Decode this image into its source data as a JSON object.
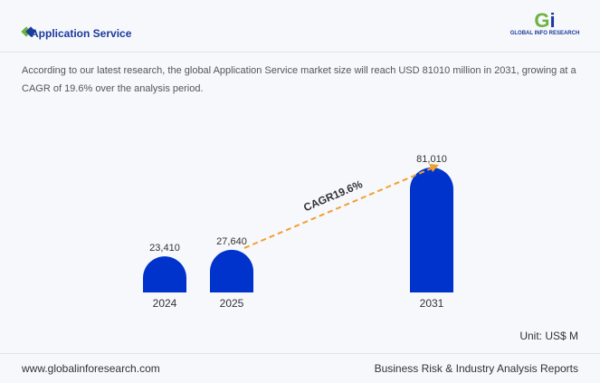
{
  "header": {
    "title": "Application Service",
    "logo_text": "GLOBAL INFO RESEARCH"
  },
  "description": "According to our latest research, the global Application Service market size will reach USD 81010 million in 2031, growing at a CAGR of 19.6% over the analysis period.",
  "colors": {
    "bar": "#0033cc",
    "arrow": "#f0a030",
    "title": "#1a3a9c"
  },
  "chart_data": {
    "type": "bar",
    "categories": [
      "2024",
      "2025",
      "2031"
    ],
    "values": [
      23410,
      27640,
      81010
    ],
    "data_labels": [
      "23,410",
      "27,640",
      "81,010"
    ],
    "annotation": "CAGR19.6%",
    "unit": "Unit: US$ M",
    "grid": false
  },
  "footer": {
    "website": "www.globalinforesearch.com",
    "tagline": "Business Risk & Industry Analysis Reports"
  }
}
